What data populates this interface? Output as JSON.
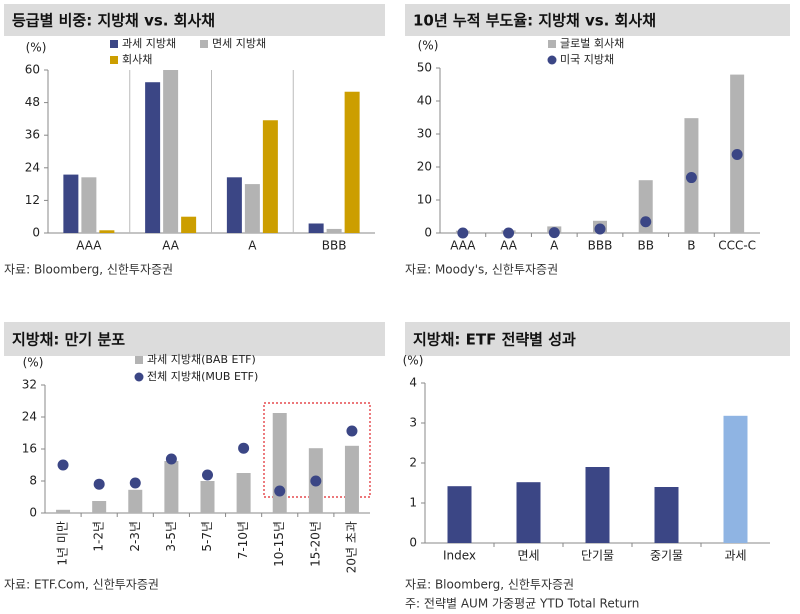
{
  "chart_data": [
    {
      "type": "bar",
      "title": "등급별 비중: 지방채 vs. 회사채",
      "unit": "(%)",
      "categories": [
        "AAA",
        "AA",
        "A",
        "BBB"
      ],
      "series": [
        {
          "name": "과세 지방채",
          "color": "#3b4685",
          "kind": "bar",
          "values": [
            21.5,
            55.5,
            20.5,
            3.5
          ]
        },
        {
          "name": "면세 지방채",
          "color": "#b3b3b3",
          "kind": "bar",
          "values": [
            20.5,
            60,
            18,
            1.5
          ]
        },
        {
          "name": "회사채",
          "color": "#cc9e00",
          "kind": "bar",
          "values": [
            1,
            6,
            41.5,
            52
          ]
        }
      ],
      "ylim": [
        0,
        60
      ],
      "yticks": [
        0,
        12,
        24,
        36,
        48,
        60
      ],
      "source": "자료: Bloomberg, 신한투자증권"
    },
    {
      "type": "combo",
      "title": "10년 누적 부도율: 지방채 vs. 회사채",
      "unit": "(%)",
      "categories": [
        "AAA",
        "AA",
        "A",
        "BBB",
        "BB",
        "B",
        "CCC-C"
      ],
      "series": [
        {
          "name": "글로벌 회사채",
          "color": "#b3b3b3",
          "kind": "bar",
          "values": [
            0.7,
            0.8,
            2,
            3.7,
            16,
            34.8,
            48
          ]
        },
        {
          "name": "미국 지방채",
          "color": "#3b4685",
          "kind": "scatter",
          "values": [
            0,
            0,
            0.1,
            1.2,
            3.4,
            16.8,
            23.8
          ]
        }
      ],
      "ylim": [
        0,
        50
      ],
      "yticks": [
        0,
        10,
        20,
        30,
        40,
        50
      ],
      "source": "자료: Moody's, 신한투자증권"
    },
    {
      "type": "combo",
      "title": "지방채: 만기 분포",
      "unit": "(%)",
      "categories": [
        "1년 미만",
        "1-2년",
        "2-3년",
        "3-5년",
        "5-7년",
        "7-10년",
        "10-15년",
        "15-20년",
        "20년 초과"
      ],
      "series": [
        {
          "name": "과세 지방채(BAB ETF)",
          "color": "#b3b3b3",
          "kind": "bar",
          "values": [
            0.8,
            3,
            5.8,
            13,
            8,
            10,
            25,
            16.2,
            16.8
          ]
        },
        {
          "name": "전체 지방채(MUB ETF)",
          "color": "#3b4685",
          "kind": "scatter",
          "values": [
            12,
            7.2,
            7.5,
            13.5,
            9.5,
            16.2,
            5.5,
            8,
            20.5
          ]
        }
      ],
      "ylim": [
        0,
        32
      ],
      "yticks": [
        0,
        8,
        16,
        24,
        32
      ],
      "source": "자료: ETF.Com, 신한투자증권"
    },
    {
      "type": "bar",
      "title": "지방채: ETF 전략별 성과",
      "unit": "(%)",
      "categories": [
        "Index",
        "면세",
        "단기물",
        "중기물",
        "과세"
      ],
      "values": [
        1.42,
        1.52,
        1.9,
        1.4,
        3.18
      ],
      "colors": [
        "#3b4685",
        "#3b4685",
        "#3b4685",
        "#3b4685",
        "#8fb4e3"
      ],
      "ylim": [
        0,
        4
      ],
      "yticks": [
        0,
        1,
        2,
        3,
        4
      ],
      "source": "자료: Bloomberg, 신한투자증권",
      "note": "주: 전략별 AUM 가중평균 YTD Total Return"
    }
  ]
}
